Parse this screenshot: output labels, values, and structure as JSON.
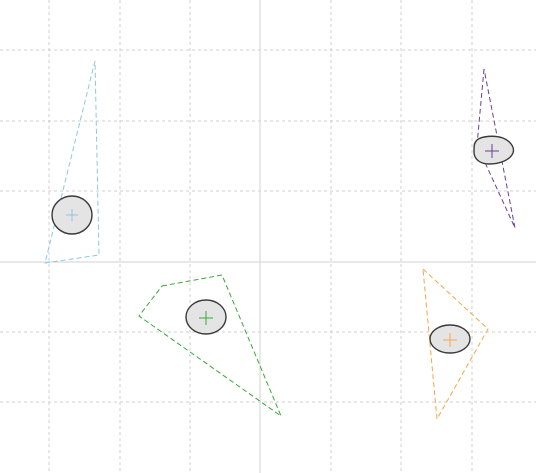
{
  "colors": {
    "background": "#ffffff",
    "grid": "#cfcfcf",
    "axis": "#d9d9d9",
    "blob_fill": "#e4e4e4",
    "blob_stroke": "#3a3a3a"
  },
  "grid": {
    "dashed": true,
    "axis_solid": true
  },
  "shapes": [
    {
      "id": "light-blue",
      "color": "#8ec6e6"
    },
    {
      "id": "purple",
      "color": "#6a3d9a"
    },
    {
      "id": "green",
      "color": "#3aa63a"
    },
    {
      "id": "orange",
      "color": "#f7a648"
    }
  ]
}
